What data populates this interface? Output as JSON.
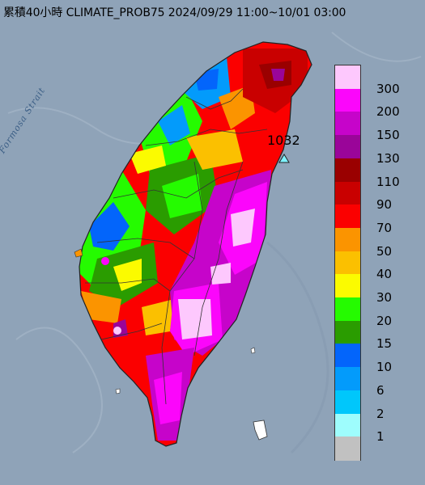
{
  "title": "累積40小時 CLIMATE_PROB75 2024/09/29 11:00~10/01 03:00",
  "water_label": "Formosa Strait",
  "station": {
    "label": "1032",
    "marker": "triangle-icon"
  },
  "legend": {
    "levels": [
      {
        "label": "300",
        "color": "#fdc8fd"
      },
      {
        "label": "200",
        "color": "#fb06fb"
      },
      {
        "label": "150",
        "color": "#c604ca"
      },
      {
        "label": "130",
        "color": "#9a0599"
      },
      {
        "label": "110",
        "color": "#9a0000"
      },
      {
        "label": "90",
        "color": "#c90000"
      },
      {
        "label": "70",
        "color": "#fb0000"
      },
      {
        "label": "50",
        "color": "#fb9400"
      },
      {
        "label": "40",
        "color": "#fbc000"
      },
      {
        "label": "30",
        "color": "#fbfb00"
      },
      {
        "label": "20",
        "color": "#25fb00"
      },
      {
        "label": "15",
        "color": "#2a9c00"
      },
      {
        "label": "10",
        "color": "#0365fb"
      },
      {
        "label": "6",
        "color": "#039bfb"
      },
      {
        "label": "2",
        "color": "#00c7fb"
      },
      {
        "label": "1",
        "color": "#9efdfd"
      },
      {
        "label": "",
        "color": "#c1c1c1"
      }
    ]
  }
}
